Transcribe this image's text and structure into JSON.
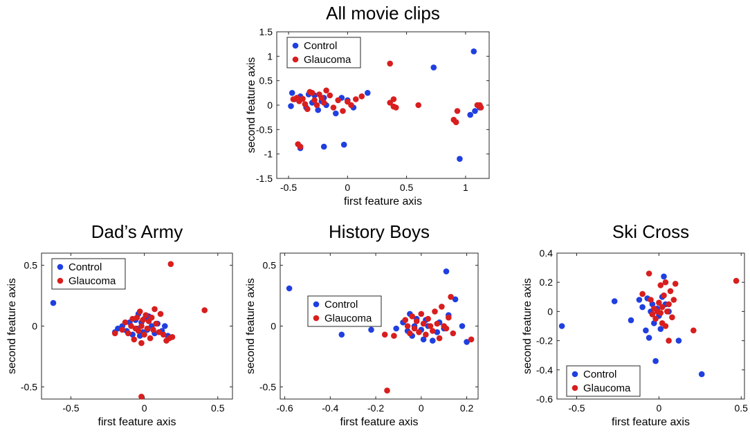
{
  "chart_data": [
    {
      "type": "scatter",
      "title": "All movie clips",
      "xlabel": "first feature axis",
      "ylabel": "second feature axis",
      "xlim": [
        -0.6,
        1.2
      ],
      "ylim": [
        -1.5,
        1.5
      ],
      "xticks": [
        -0.5,
        0,
        0.5,
        1
      ],
      "yticks": [
        -1.5,
        -1,
        -0.5,
        0,
        0.5,
        1,
        1.5
      ],
      "xtick_labels": [
        "-0.5",
        "0",
        "0.5",
        "1"
      ],
      "ytick_labels": [
        "-1.5",
        "-1",
        "-0.5",
        "0",
        "0.5",
        "1",
        "1.5"
      ],
      "legend": [
        "Control",
        "Glaucoma"
      ],
      "legend_position": "top-left",
      "series": [
        {
          "name": "Control",
          "color": "#1f3fe0",
          "points": [
            [
              -0.47,
              0.25
            ],
            [
              -0.45,
              0.12
            ],
            [
              -0.48,
              -0.02
            ],
            [
              -0.4,
              0.18
            ],
            [
              -0.35,
              -0.05
            ],
            [
              -0.33,
              0.22
            ],
            [
              -0.3,
              0.05
            ],
            [
              -0.28,
              0.2
            ],
            [
              -0.25,
              -0.1
            ],
            [
              -0.22,
              0.08
            ],
            [
              -0.2,
              0.15
            ],
            [
              -0.18,
              0.0
            ],
            [
              -0.1,
              -0.17
            ],
            [
              -0.05,
              0.15
            ],
            [
              0.0,
              0.1
            ],
            [
              0.05,
              -0.05
            ],
            [
              0.17,
              0.25
            ],
            [
              -0.4,
              -0.88
            ],
            [
              -0.2,
              -0.85
            ],
            [
              -0.03,
              -0.81
            ],
            [
              0.73,
              0.77
            ],
            [
              1.07,
              1.1
            ],
            [
              0.95,
              -1.1
            ],
            [
              1.04,
              -0.2
            ],
            [
              1.08,
              -0.12
            ],
            [
              1.12,
              -0.05
            ]
          ]
        },
        {
          "name": "Glaucoma",
          "color": "#d81e1e",
          "points": [
            [
              -0.46,
              0.12
            ],
            [
              -0.43,
              0.15
            ],
            [
              -0.41,
              0.08
            ],
            [
              -0.38,
              0.13
            ],
            [
              -0.36,
              0.02
            ],
            [
              -0.34,
              -0.08
            ],
            [
              -0.32,
              0.27
            ],
            [
              -0.3,
              0.25
            ],
            [
              -0.28,
              0.1
            ],
            [
              -0.26,
              0.0
            ],
            [
              -0.24,
              0.22
            ],
            [
              -0.22,
              0.15
            ],
            [
              -0.2,
              0.05
            ],
            [
              -0.18,
              0.3
            ],
            [
              -0.15,
              0.2
            ],
            [
              -0.12,
              -0.05
            ],
            [
              -0.08,
              0.1
            ],
            [
              -0.04,
              -0.12
            ],
            [
              0.0,
              0.07
            ],
            [
              0.03,
              0.0
            ],
            [
              0.07,
              0.12
            ],
            [
              0.12,
              0.18
            ],
            [
              -0.42,
              -0.8
            ],
            [
              -0.4,
              -0.85
            ],
            [
              0.36,
              0.85
            ],
            [
              0.36,
              0.05
            ],
            [
              0.39,
              0.12
            ],
            [
              0.41,
              -0.05
            ],
            [
              0.39,
              -0.03
            ],
            [
              0.6,
              0.0
            ],
            [
              0.9,
              -0.3
            ],
            [
              0.92,
              -0.35
            ],
            [
              0.93,
              -0.12
            ],
            [
              1.1,
              0.0
            ],
            [
              1.12,
              0.0
            ],
            [
              1.13,
              -0.05
            ]
          ]
        }
      ]
    },
    {
      "type": "scatter",
      "title": "Dad’s Army",
      "xlabel": "first feature axis",
      "ylabel": "second feature axis",
      "xlim": [
        -0.7,
        0.6
      ],
      "ylim": [
        -0.6,
        0.6
      ],
      "xticks": [
        -0.5,
        0,
        0.5
      ],
      "yticks": [
        -0.5,
        0,
        0.5
      ],
      "xtick_labels": [
        "-0.5",
        "0",
        "0.5"
      ],
      "ytick_labels": [
        "-0.5",
        "0",
        "0.5"
      ],
      "legend": [
        "Control",
        "Glaucoma"
      ],
      "legend_position": "top-left",
      "series": [
        {
          "name": "Control",
          "color": "#1f3fe0",
          "points": [
            [
              -0.62,
              0.19
            ],
            [
              -0.2,
              -0.05
            ],
            [
              -0.18,
              -0.02
            ],
            [
              -0.15,
              0.0
            ],
            [
              -0.12,
              -0.04
            ],
            [
              -0.1,
              0.03
            ],
            [
              -0.08,
              -0.07
            ],
            [
              -0.06,
              0.05
            ],
            [
              -0.05,
              -0.02
            ],
            [
              -0.04,
              0.1
            ],
            [
              -0.03,
              -0.08
            ],
            [
              -0.02,
              0.03
            ],
            [
              -0.01,
              -0.05
            ],
            [
              0.0,
              0.06
            ],
            [
              0.02,
              -0.03
            ],
            [
              0.03,
              0.08
            ],
            [
              0.05,
              0.0
            ],
            [
              0.07,
              -0.06
            ],
            [
              0.09,
              0.02
            ],
            [
              0.12,
              -0.04
            ],
            [
              0.14,
              0.0
            ],
            [
              0.16,
              -0.08
            ]
          ]
        },
        {
          "name": "Glaucoma",
          "color": "#d81e1e",
          "points": [
            [
              0.18,
              0.51
            ],
            [
              0.41,
              0.13
            ],
            [
              -0.02,
              -0.58
            ],
            [
              -0.2,
              -0.06
            ],
            [
              -0.15,
              -0.03
            ],
            [
              -0.13,
              0.03
            ],
            [
              -0.11,
              -0.06
            ],
            [
              -0.09,
              0.0
            ],
            [
              -0.08,
              0.06
            ],
            [
              -0.07,
              -0.11
            ],
            [
              -0.06,
              -0.02
            ],
            [
              -0.05,
              0.07
            ],
            [
              -0.04,
              -0.04
            ],
            [
              -0.03,
              0.12
            ],
            [
              -0.02,
              0.0
            ],
            [
              -0.02,
              -0.14
            ],
            [
              -0.01,
              0.05
            ],
            [
              0.0,
              -0.07
            ],
            [
              0.01,
              0.09
            ],
            [
              0.02,
              -0.02
            ],
            [
              0.03,
              0.04
            ],
            [
              0.04,
              -0.1
            ],
            [
              0.05,
              0.07
            ],
            [
              0.06,
              -0.03
            ],
            [
              0.07,
              0.14
            ],
            [
              0.08,
              0.02
            ],
            [
              0.1,
              -0.05
            ],
            [
              0.11,
              0.1
            ],
            [
              0.13,
              -0.07
            ],
            [
              0.15,
              -0.12
            ],
            [
              0.17,
              -0.1
            ],
            [
              0.19,
              -0.09
            ]
          ]
        }
      ]
    },
    {
      "type": "scatter",
      "title": "History Boys",
      "xlabel": "first feature axis",
      "ylabel": "second feature axis",
      "xlim": [
        -0.62,
        0.25
      ],
      "ylim": [
        -0.6,
        0.6
      ],
      "xticks": [
        -0.6,
        -0.4,
        -0.2,
        0,
        0.2
      ],
      "yticks": [
        -0.5,
        0,
        0.5
      ],
      "xtick_labels": [
        "-0.6",
        "-0.4",
        "-0.2",
        "0",
        "0.2"
      ],
      "ytick_labels": [
        "-0.5",
        "0",
        "0.5"
      ],
      "legend": [
        "Control",
        "Glaucoma"
      ],
      "legend_position": "center-left",
      "series": [
        {
          "name": "Control",
          "color": "#1f3fe0",
          "points": [
            [
              -0.58,
              0.31
            ],
            [
              -0.35,
              -0.07
            ],
            [
              -0.22,
              -0.03
            ],
            [
              -0.11,
              -0.02
            ],
            [
              -0.08,
              0.03
            ],
            [
              -0.06,
              -0.04
            ],
            [
              -0.05,
              0.1
            ],
            [
              -0.04,
              -0.08
            ],
            [
              -0.03,
              0.0
            ],
            [
              -0.02,
              0.06
            ],
            [
              0.0,
              -0.03
            ],
            [
              0.01,
              -0.11
            ],
            [
              0.02,
              0.05
            ],
            [
              0.03,
              0.0
            ],
            [
              0.05,
              -0.12
            ],
            [
              0.07,
              -0.05
            ],
            [
              0.08,
              0.03
            ],
            [
              0.1,
              -0.02
            ],
            [
              0.11,
              0.45
            ],
            [
              0.12,
              0.09
            ],
            [
              0.15,
              0.22
            ],
            [
              0.18,
              0.0
            ],
            [
              0.2,
              -0.13
            ]
          ]
        },
        {
          "name": "Glaucoma",
          "color": "#d81e1e",
          "points": [
            [
              -0.15,
              -0.53
            ],
            [
              -0.16,
              -0.07
            ],
            [
              -0.12,
              -0.08
            ],
            [
              -0.07,
              0.05
            ],
            [
              -0.06,
              0.0
            ],
            [
              -0.05,
              -0.06
            ],
            [
              -0.04,
              0.08
            ],
            [
              -0.03,
              -0.02
            ],
            [
              -0.02,
              0.04
            ],
            [
              -0.01,
              -0.05
            ],
            [
              0.0,
              0.1
            ],
            [
              0.01,
              0.02
            ],
            [
              0.02,
              -0.07
            ],
            [
              0.03,
              0.06
            ],
            [
              0.04,
              0.0
            ],
            [
              0.05,
              -0.04
            ],
            [
              0.06,
              0.12
            ],
            [
              0.07,
              0.02
            ],
            [
              0.08,
              -0.1
            ],
            [
              0.09,
              0.16
            ],
            [
              0.1,
              0.0
            ],
            [
              0.11,
              -0.02
            ],
            [
              0.12,
              0.07
            ],
            [
              0.13,
              0.24
            ],
            [
              0.14,
              -0.06
            ],
            [
              0.22,
              -0.11
            ]
          ]
        }
      ]
    },
    {
      "type": "scatter",
      "title": "Ski Cross",
      "xlabel": "first feature axis",
      "ylabel": "second feature axis",
      "xlim": [
        -0.62,
        0.52
      ],
      "ylim": [
        -0.6,
        0.4
      ],
      "xticks": [
        -0.5,
        0,
        0.5
      ],
      "yticks": [
        -0.6,
        -0.4,
        -0.2,
        0,
        0.2,
        0.4
      ],
      "xtick_labels": [
        "-0.5",
        "0",
        "0.5"
      ],
      "ytick_labels": [
        "-0.6",
        "-0.4",
        "-0.2",
        "0",
        "0.2",
        "0.4"
      ],
      "legend": [
        "Control",
        "Glaucoma"
      ],
      "legend_position": "bottom-left",
      "series": [
        {
          "name": "Control",
          "color": "#1f3fe0",
          "points": [
            [
              -0.59,
              -0.1
            ],
            [
              -0.27,
              0.07
            ],
            [
              -0.17,
              -0.06
            ],
            [
              -0.12,
              0.08
            ],
            [
              -0.1,
              0.03
            ],
            [
              -0.08,
              -0.13
            ],
            [
              -0.07,
              0.09
            ],
            [
              -0.06,
              -0.18
            ],
            [
              -0.05,
              0.0
            ],
            [
              -0.04,
              0.05
            ],
            [
              -0.03,
              -0.08
            ],
            [
              -0.02,
              -0.34
            ],
            [
              -0.01,
              0.02
            ],
            [
              0.0,
              -0.03
            ],
            [
              0.01,
              -0.12
            ],
            [
              0.02,
              0.1
            ],
            [
              0.03,
              0.24
            ],
            [
              0.04,
              0.05
            ],
            [
              0.06,
              0.0
            ],
            [
              0.12,
              -0.2
            ],
            [
              0.26,
              -0.43
            ]
          ]
        },
        {
          "name": "Glaucoma",
          "color": "#d81e1e",
          "points": [
            [
              0.47,
              0.21
            ],
            [
              0.21,
              -0.13
            ],
            [
              -0.1,
              0.12
            ],
            [
              -0.06,
              0.26
            ],
            [
              -0.05,
              0.08
            ],
            [
              -0.04,
              -0.02
            ],
            [
              -0.03,
              0.02
            ],
            [
              -0.02,
              -0.05
            ],
            [
              -0.01,
              0.0
            ],
            [
              0.0,
              0.06
            ],
            [
              0.01,
              -0.01
            ],
            [
              0.01,
              0.18
            ],
            [
              0.02,
              0.03
            ],
            [
              0.02,
              -0.08
            ],
            [
              0.03,
              0.11
            ],
            [
              0.04,
              0.2
            ],
            [
              0.04,
              -0.1
            ],
            [
              0.05,
              0.0
            ],
            [
              0.06,
              0.05
            ],
            [
              0.06,
              -0.2
            ],
            [
              0.07,
              0.14
            ],
            [
              0.08,
              -0.04
            ],
            [
              0.09,
              0.08
            ],
            [
              0.1,
              0.19
            ]
          ]
        }
      ]
    }
  ]
}
